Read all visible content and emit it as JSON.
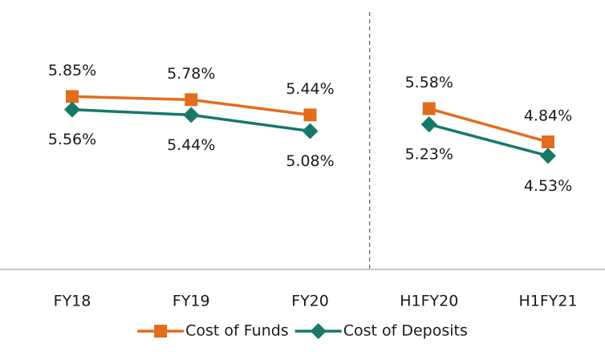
{
  "chart_data": {
    "type": "line",
    "categories": [
      "FY18",
      "FY19",
      "FY20",
      null,
      "H1FY20",
      "H1FY21"
    ],
    "series": [
      {
        "name": "Cost of Funds",
        "color": "#e46c1e",
        "marker": "square",
        "label_position": "above",
        "values": [
          5.85,
          5.78,
          5.44,
          null,
          5.58,
          4.84
        ],
        "value_labels": [
          "5.85%",
          "5.78%",
          "5.44%",
          null,
          "5.58%",
          "4.84%"
        ]
      },
      {
        "name": "Cost of Deposits",
        "color": "#17786a",
        "marker": "diamond",
        "label_position": "below",
        "values": [
          5.56,
          5.44,
          5.08,
          null,
          5.23,
          4.53
        ],
        "value_labels": [
          "5.56%",
          "5.44%",
          "5.08%",
          null,
          "5.23%",
          "4.53%"
        ]
      }
    ],
    "ylim": [
      2,
      8
    ],
    "legend": "bottom"
  }
}
